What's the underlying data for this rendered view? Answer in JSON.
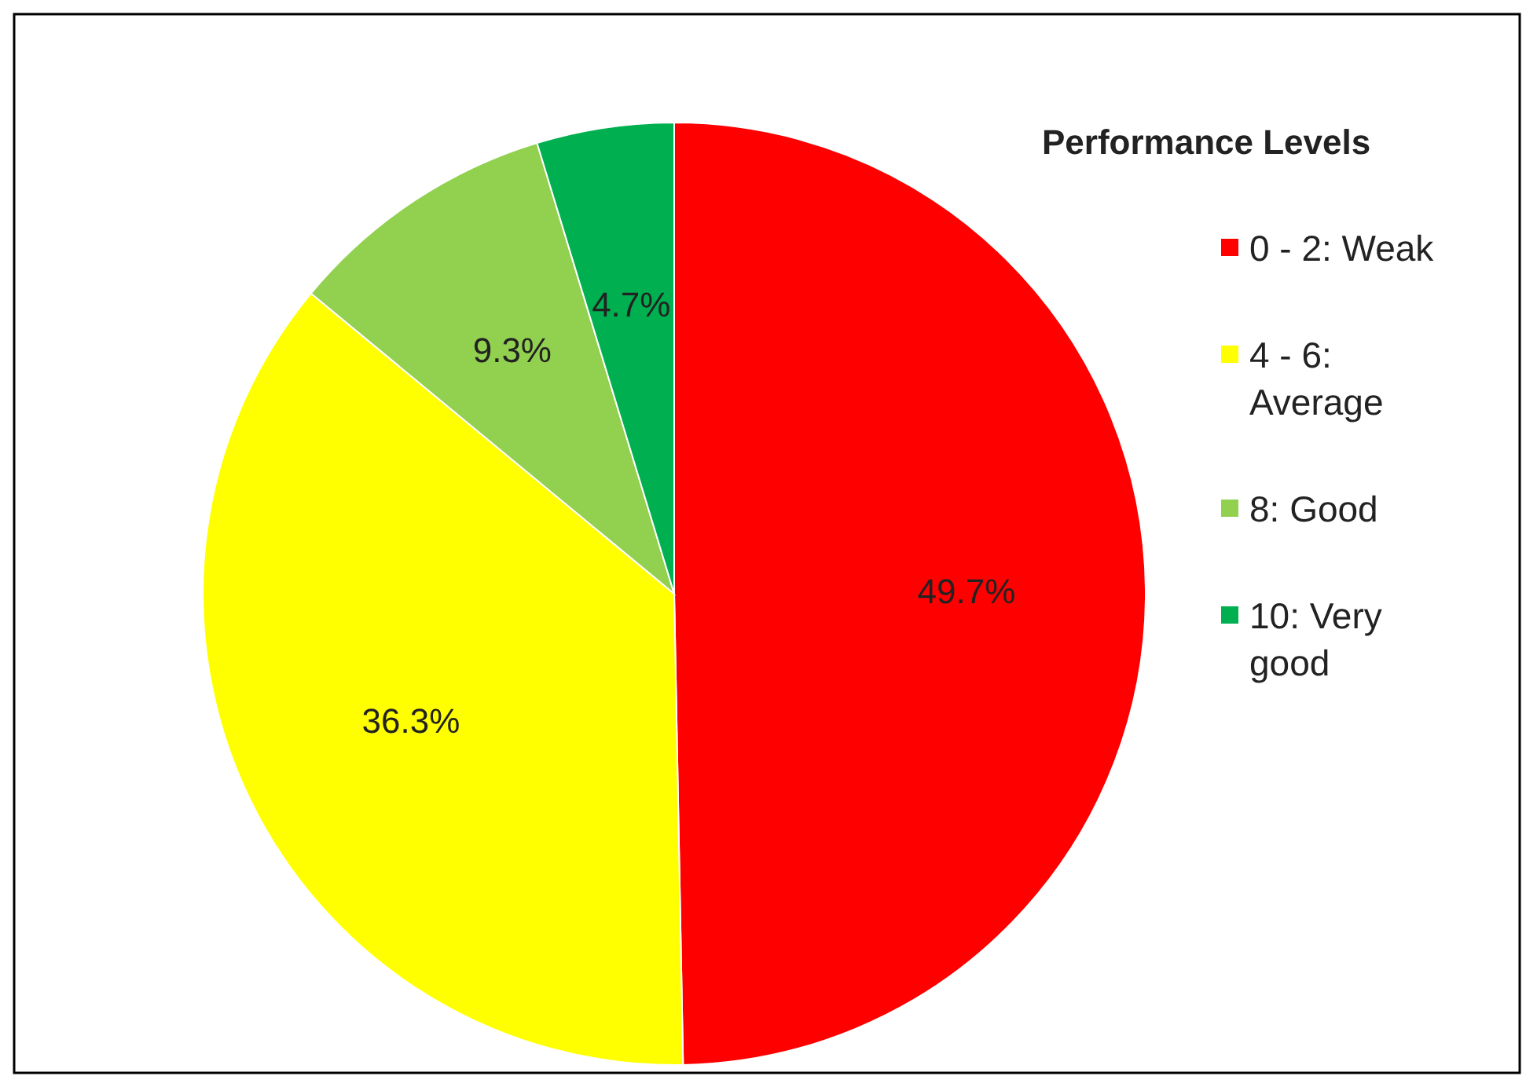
{
  "chart_data": {
    "type": "pie",
    "legend_title": "Performance Levels",
    "legend": "right",
    "categories": [
      "0 - 2: Weak",
      "4 - 6: Average",
      "8: Good",
      "10: Very good"
    ],
    "values": [
      49.7,
      36.3,
      9.3,
      4.7
    ],
    "colors": [
      "#ff0000",
      "#ffff00",
      "#92d050",
      "#00b050"
    ],
    "value_labels": [
      "49.7%",
      "36.3%",
      "9.3%",
      "4.7%"
    ]
  }
}
